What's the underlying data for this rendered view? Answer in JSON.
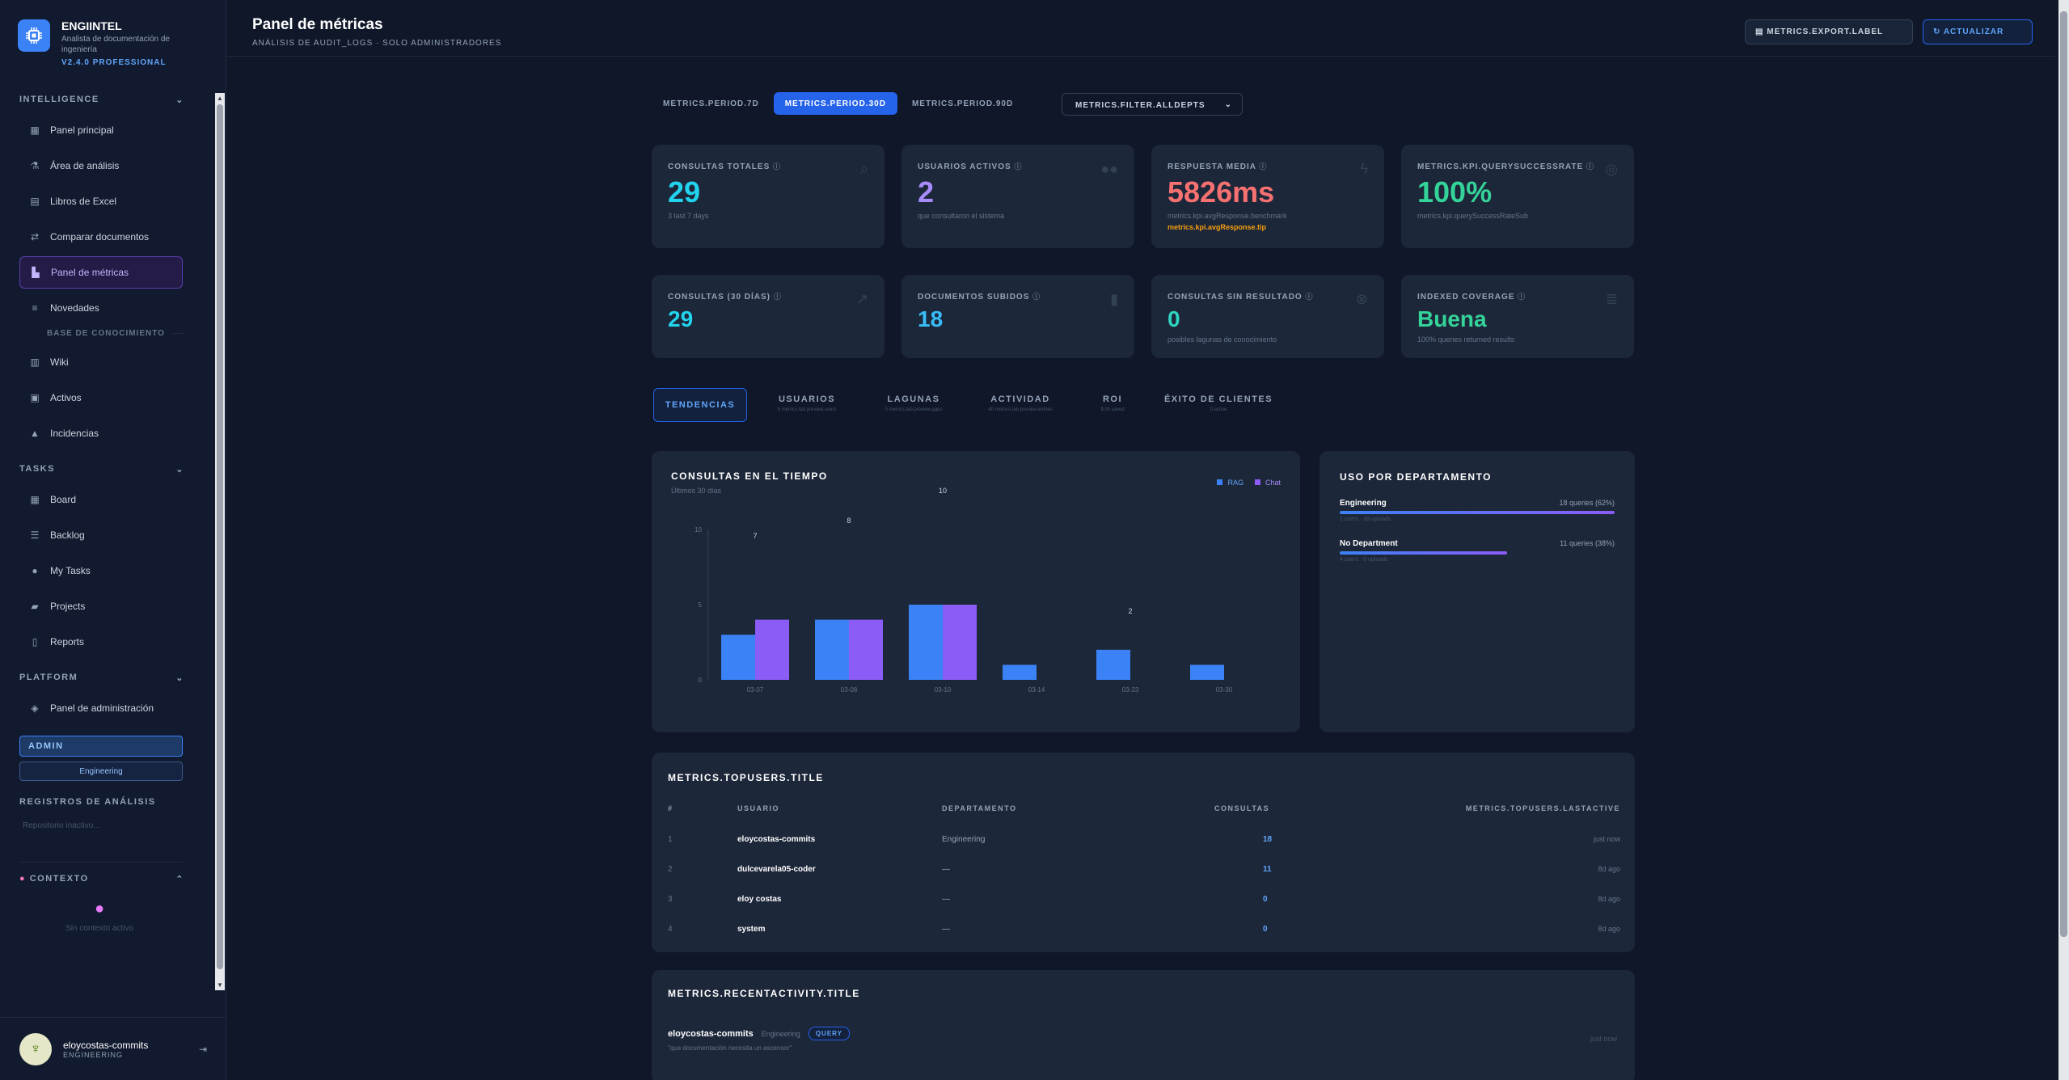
{
  "brand": {
    "name": "ENGIINTEL",
    "subtitle": "Analista de documentación de ingeniería",
    "version": "V2.4.0 PROFESSIONAL"
  },
  "sidebar": {
    "sections": {
      "intelligence": "INTELLIGENCE",
      "knowledge": "BASE DE CONOCIMIENTO",
      "tasks": "TASKS",
      "platform": "PLATFORM",
      "registros": "REGISTROS DE ANÁLISIS",
      "contexto": "CONTEXTO"
    },
    "intelligence_items": [
      {
        "label": "Panel principal",
        "icon": "grid-icon"
      },
      {
        "label": "Área de análisis",
        "icon": "flask-icon"
      },
      {
        "label": "Libros de Excel",
        "icon": "file-icon"
      },
      {
        "label": "Comparar documentos",
        "icon": "compare-icon"
      },
      {
        "label": "Panel de métricas",
        "icon": "chart-icon"
      },
      {
        "label": "Novedades",
        "icon": "news-icon"
      }
    ],
    "knowledge_items": [
      {
        "label": "Wiki",
        "icon": "book-icon"
      },
      {
        "label": "Activos",
        "icon": "box-icon"
      },
      {
        "label": "Incidencias",
        "icon": "alert-icon"
      }
    ],
    "task_items": [
      {
        "label": "Board",
        "icon": "board-icon"
      },
      {
        "label": "Backlog",
        "icon": "list-icon"
      },
      {
        "label": "My Tasks",
        "icon": "user-icon"
      },
      {
        "label": "Projects",
        "icon": "folder-icon"
      },
      {
        "label": "Reports",
        "icon": "report-icon"
      }
    ],
    "platform_items": [
      {
        "label": "Panel de administración",
        "icon": "shield-icon"
      }
    ],
    "role": "ADMIN",
    "department": "Engineering",
    "registros_empty": "Repositorio inactivo...",
    "contexto_empty": "Sin contexto activo"
  },
  "user": {
    "name": "eloycostas-commits",
    "dept": "ENGINEERING"
  },
  "header": {
    "title": "Panel de métricas",
    "subtitle": "ANÁLISIS DE AUDIT_LOGS · SOLO ADMINISTRADORES",
    "export_label": "METRICS.EXPORT.LABEL",
    "refresh_label": "ACTUALIZAR"
  },
  "periods": [
    "METRICS.PERIOD.7D",
    "METRICS.PERIOD.30D",
    "METRICS.PERIOD.90D"
  ],
  "active_period": 1,
  "filter_label": "METRICS.FILTER.ALLDEPTS",
  "kpis_row1": [
    {
      "label": "CONSULTAS TOTALES",
      "value": "29",
      "sub": "3 last 7 days",
      "color": "#22d3ee",
      "icon": "search-icon"
    },
    {
      "label": "USUARIOS ACTIVOS",
      "value": "2",
      "sub": "que consultaron el sistema",
      "color": "#a78bfa",
      "icon": "users-icon"
    },
    {
      "label": "RESPUESTA MEDIA",
      "value": "5826ms",
      "sub": "metrics.kpi.avgResponse.benchmark",
      "tip": "metrics.kpi.avgResponse.tip",
      "color": "#f87171",
      "icon": "bolt-icon"
    },
    {
      "label": "METRICS.KPI.QUERYSUCCESSRATE",
      "value": "100%",
      "sub": "metrics.kpi.querySuccessRateSub",
      "color": "#34d399",
      "icon": "target-icon"
    }
  ],
  "kpis_row2": [
    {
      "label": "CONSULTAS (30 DÍAS)",
      "value": "29",
      "sub": "",
      "color": "#22d3ee",
      "icon": "trend-icon"
    },
    {
      "label": "DOCUMENTOS SUBIDOS",
      "value": "18",
      "sub": "",
      "color": "#38bdf8",
      "icon": "doc-icon"
    },
    {
      "label": "CONSULTAS SIN RESULTADO",
      "value": "0",
      "sub": "posibles lagunas de conocimiento",
      "color": "#2dd4bf",
      "icon": "x-circle-icon"
    },
    {
      "label": "INDEXED COVERAGE",
      "value": "Buena",
      "sub": "100% queries returned results",
      "color": "#34d399",
      "icon": "database-icon"
    }
  ],
  "tabs": [
    {
      "label": "TENDENCIAS",
      "sub": ""
    },
    {
      "label": "USUARIOS",
      "sub": "6 metrics.tab.preview.users"
    },
    {
      "label": "LAGUNAS",
      "sub": "0 metrics.tab.preview.gaps"
    },
    {
      "label": "ACTIVIDAD",
      "sub": "40 metrics.tab.preview.entries"
    },
    {
      "label": "ROI",
      "sub": "$.0h saved"
    },
    {
      "label": "ÉXITO DE CLIENTES",
      "sub": "0 active"
    }
  ],
  "chart_data": {
    "type": "bar",
    "title": "CONSULTAS EN EL TIEMPO",
    "subtitle": "Últimos 30 días",
    "categories": [
      "03-07",
      "03-08",
      "03-10",
      "03-14",
      "03-23",
      "03-30"
    ],
    "series": [
      {
        "name": "RAG",
        "values": [
          3,
          4,
          5,
          1,
          2,
          1
        ],
        "color": "#3b82f6"
      },
      {
        "name": "Chat",
        "values": [
          4,
          4,
          5,
          0,
          0,
          0
        ],
        "color": "#8b5cf6"
      }
    ],
    "totals": [
      "7",
      "8",
      "10",
      "",
      "2",
      ""
    ],
    "yticks": [
      "0",
      "5",
      "10"
    ],
    "ylim": [
      0,
      10
    ],
    "legend": "top-right"
  },
  "dept_usage": {
    "title": "USO POR DEPARTAMENTO",
    "rows": [
      {
        "name": "Engineering",
        "queries": "18 queries (62%)",
        "detail": "1 users · 18 uploads",
        "pct": 1.0
      },
      {
        "name": "No Department",
        "queries": "11 queries (38%)",
        "detail": "4 users · 0 uploads",
        "pct": 0.61
      }
    ]
  },
  "top_users": {
    "title": "METRICS.TOPUSERS.TITLE",
    "headers": [
      "#",
      "USUARIO",
      "DEPARTAMENTO",
      "CONSULTAS",
      "METRICS.TOPUSERS.LASTACTIVE"
    ],
    "rows": [
      {
        "rank": "1",
        "user": "eloycostas-commits",
        "dept": "Engineering",
        "queries": "18",
        "last": "just now"
      },
      {
        "rank": "2",
        "user": "dulcevarela05-coder",
        "dept": "—",
        "queries": "11",
        "last": "8d ago"
      },
      {
        "rank": "3",
        "user": "eloy costas",
        "dept": "—",
        "queries": "0",
        "last": "8d ago"
      },
      {
        "rank": "4",
        "user": "system",
        "dept": "—",
        "queries": "0",
        "last": "8d ago"
      }
    ]
  },
  "recent_activity": {
    "title": "METRICS.RECENTACTIVITY.TITLE",
    "rows": [
      {
        "user": "eloycostas-commits",
        "dept": "Engineering",
        "tag": "QUERY",
        "text": "\"que documentación necesita un ascensor\"",
        "time": "just now"
      }
    ]
  }
}
